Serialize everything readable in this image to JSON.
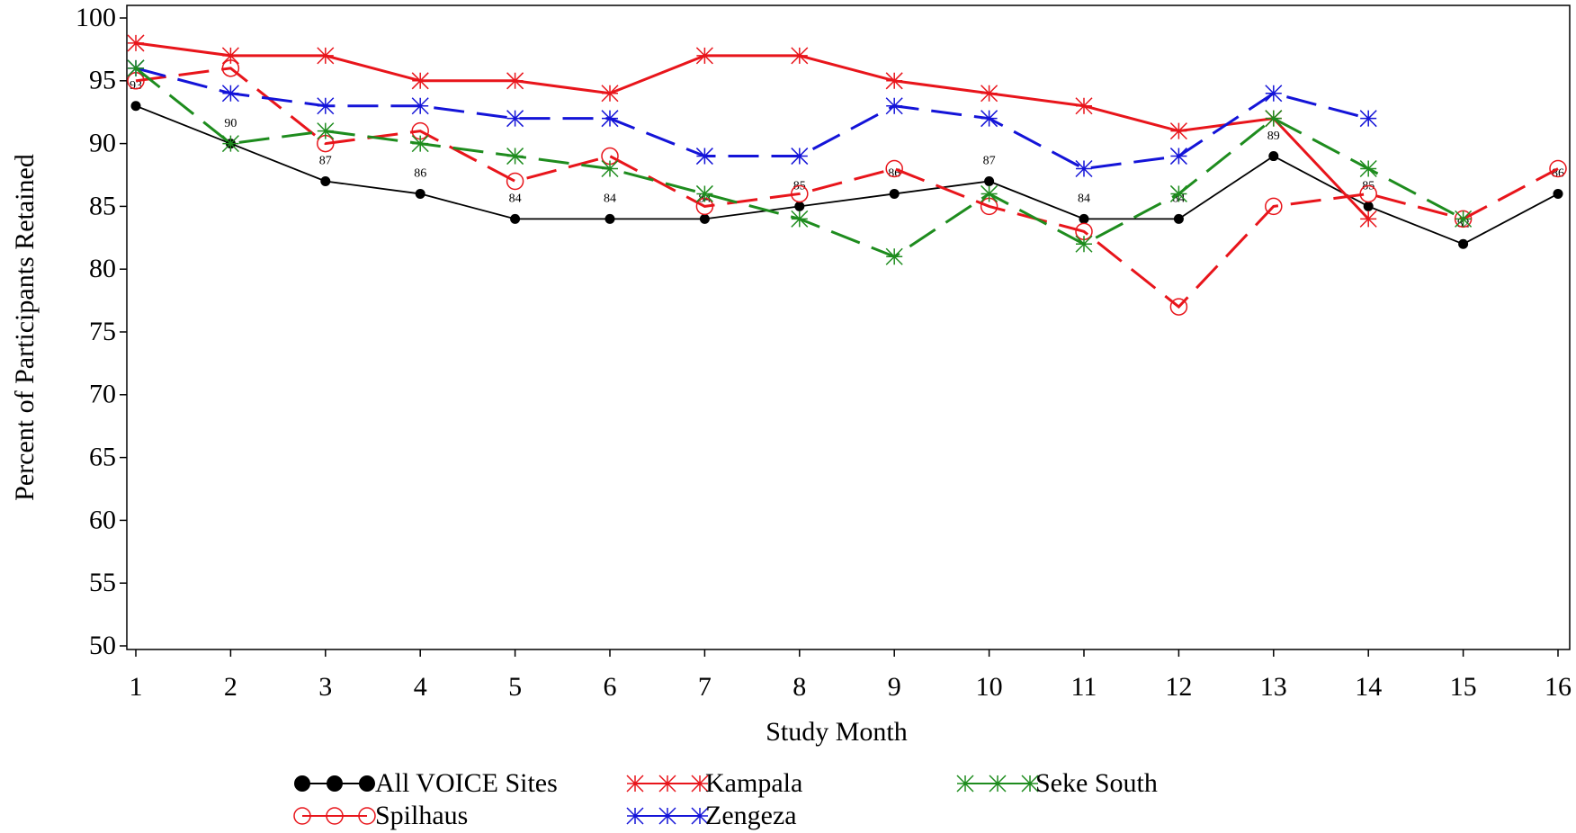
{
  "chart_data": {
    "type": "line",
    "x_label": "Study Month",
    "y_label": "Percent of Participants Retained",
    "x": [
      1,
      2,
      3,
      4,
      5,
      6,
      7,
      8,
      9,
      10,
      11,
      12,
      13,
      14,
      15,
      16
    ],
    "xlim": [
      1,
      16
    ],
    "xticks": [
      1,
      2,
      3,
      4,
      5,
      6,
      7,
      8,
      9,
      10,
      11,
      12,
      13,
      14,
      15,
      16
    ],
    "ylim": [
      50,
      100
    ],
    "yticks": [
      50,
      55,
      60,
      65,
      70,
      75,
      80,
      85,
      90,
      95,
      100
    ],
    "legend": "bottom",
    "series": [
      {
        "name": "All VOICE Sites",
        "color": "#000000",
        "dash": "solid",
        "marker": "dot",
        "show_labels": true,
        "values": [
          93,
          90,
          87,
          86,
          84,
          84,
          84,
          85,
          86,
          87,
          84,
          84,
          89,
          85,
          82,
          86
        ]
      },
      {
        "name": "Spilhaus",
        "color": "#e8151b",
        "dash": "dashed",
        "marker": "circle",
        "values": [
          95,
          96,
          90,
          91,
          87,
          89,
          85,
          86,
          88,
          85,
          83,
          77,
          85,
          86,
          84,
          88
        ]
      },
      {
        "name": "Kampala",
        "color": "#e8151b",
        "dash": "solid",
        "marker": "star",
        "values": [
          98,
          97,
          97,
          95,
          95,
          94,
          97,
          97,
          95,
          94,
          93,
          91,
          92,
          84,
          null,
          null
        ]
      },
      {
        "name": "Zengeza",
        "color": "#1414d8",
        "dash": "dashed",
        "marker": "star",
        "values": [
          96,
          94,
          93,
          93,
          92,
          92,
          89,
          89,
          93,
          92,
          88,
          89,
          94,
          92,
          null,
          null
        ]
      },
      {
        "name": "Seke South",
        "color": "#1e8c1e",
        "dash": "dashed",
        "marker": "star",
        "values": [
          96,
          90,
          91,
          90,
          89,
          88,
          86,
          84,
          81,
          86,
          82,
          86,
          92,
          88,
          84,
          null
        ]
      }
    ]
  }
}
